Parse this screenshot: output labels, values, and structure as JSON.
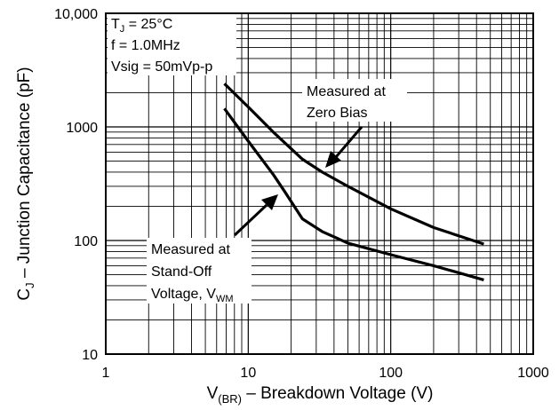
{
  "chart_data": {
    "type": "line",
    "xscale": "log",
    "yscale": "log",
    "xlim": [
      1,
      1000
    ],
    "ylim": [
      10,
      10000
    ],
    "grid": true,
    "x_ticks": [
      "1",
      "10",
      "100",
      "1000"
    ],
    "y_ticks": [
      "10",
      "100",
      "1000",
      "10,000"
    ],
    "xlabel": {
      "main": "V",
      "sub": "(BR)",
      "rest": " – Breakdown Voltage (V)"
    },
    "ylabel": {
      "main": "C",
      "sub": "J",
      "rest": " – Junction Capacitance (pF)"
    },
    "conditions": [
      {
        "main": "T",
        "sub": "J",
        "rest": " = 25°C"
      },
      {
        "main": "f = 1.0MHz",
        "sub": "",
        "rest": ""
      },
      {
        "main": "Vsig = 50mVp-p",
        "sub": "",
        "rest": ""
      }
    ],
    "series": [
      {
        "x": [
          6.8,
          10,
          15,
          24,
          33,
          50,
          100,
          200,
          450
        ],
        "y": [
          2400,
          1500,
          900,
          520,
          400,
          300,
          190,
          130,
          93
        ]
      },
      {
        "x": [
          6.8,
          10,
          15,
          18,
          24,
          33,
          50,
          100,
          200,
          450
        ],
        "y": [
          1450,
          750,
          380,
          270,
          155,
          120,
          95,
          75,
          60,
          45
        ]
      }
    ],
    "annotations": [
      {
        "lines": [
          "Measured at",
          "Zero Bias"
        ]
      },
      {
        "lines": [
          "Measured at",
          "Stand-Off",
          "Voltage, V"
        ],
        "sub": "WM"
      }
    ]
  }
}
